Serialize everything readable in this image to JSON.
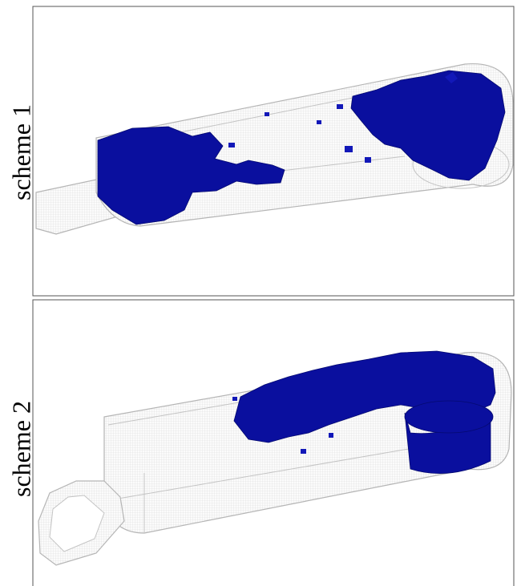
{
  "panels": [
    {
      "label": "scheme 1"
    },
    {
      "label": "scheme 2"
    }
  ]
}
